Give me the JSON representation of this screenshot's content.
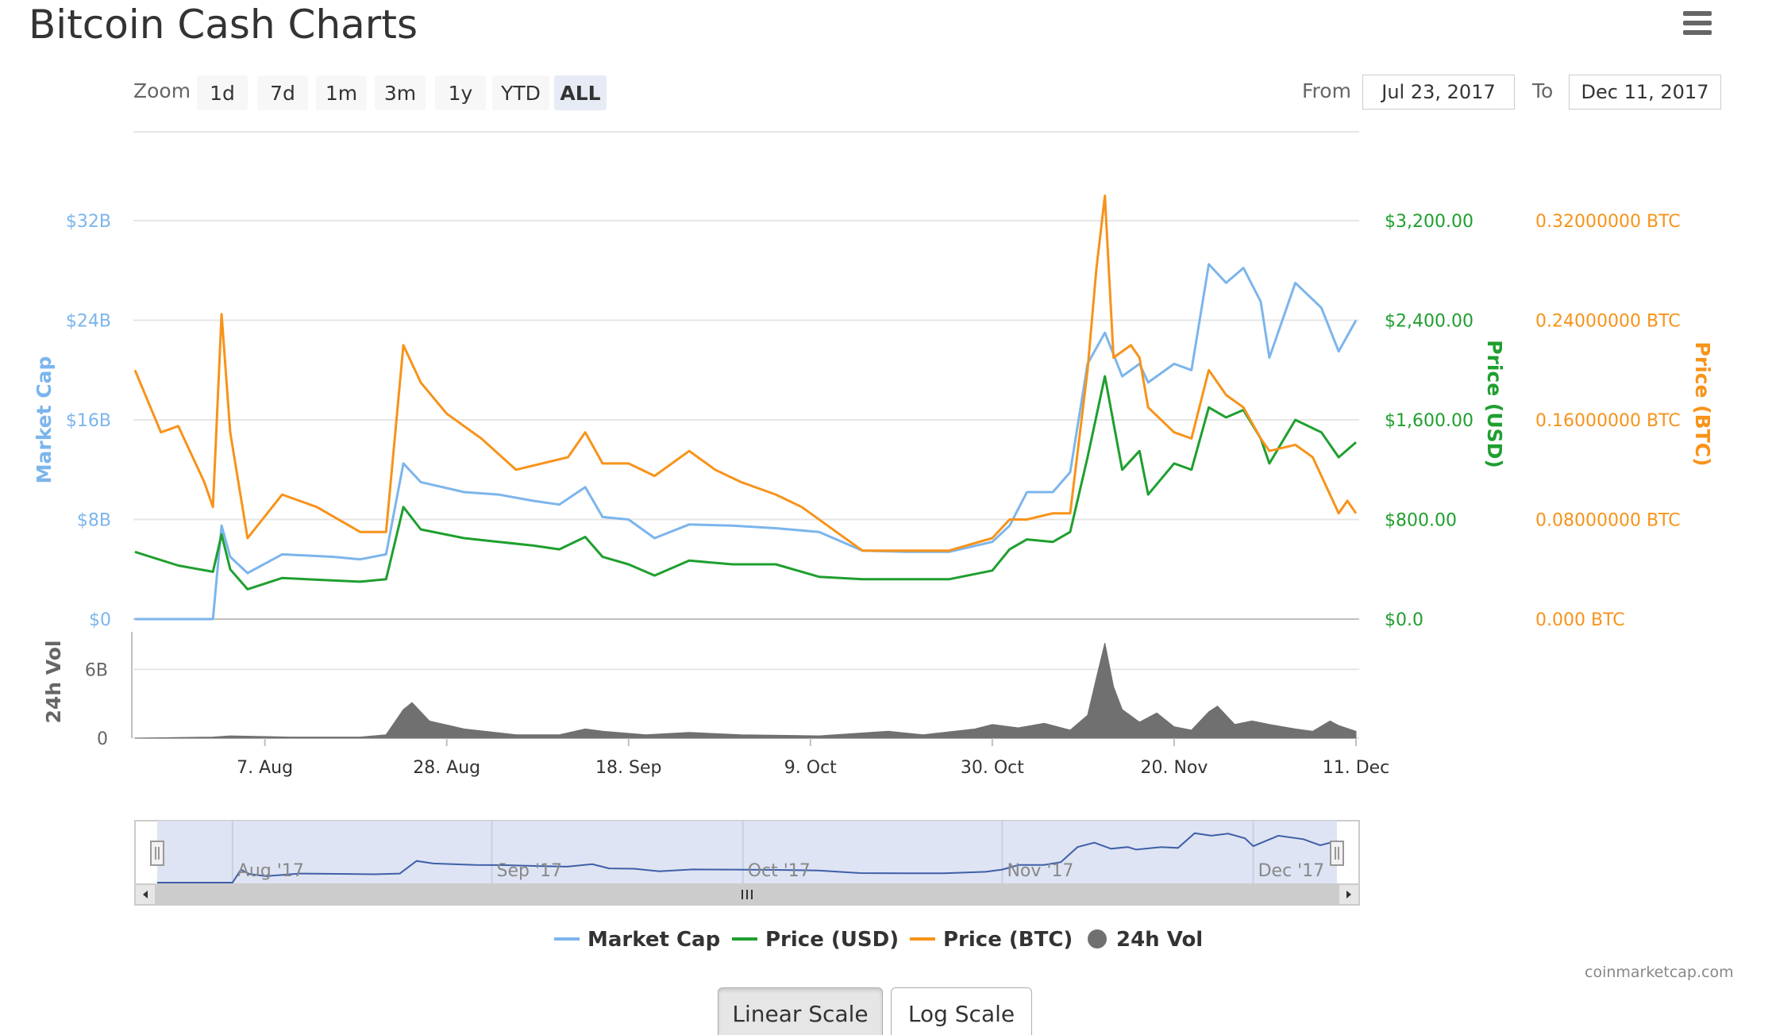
{
  "page": {
    "title": "Bitcoin Cash Charts",
    "menu_icon": "hamburger-menu-icon"
  },
  "zoom": {
    "label": "Zoom",
    "buttons": [
      "1d",
      "7d",
      "1m",
      "3m",
      "1y",
      "YTD",
      "ALL"
    ],
    "active": "ALL"
  },
  "range": {
    "from_label": "From",
    "from_value": "Jul 23, 2017",
    "to_label": "To",
    "to_value": "Dec 11, 2017"
  },
  "colors": {
    "market_cap": "#7cb5ec",
    "price_usd": "#1f9f2f",
    "price_btc": "#f7931a",
    "volume": "#707070",
    "navigator_line": "#3f5fa8",
    "navigator_mask": "#dae1f2"
  },
  "chart_data": {
    "type": "line",
    "x_range": [
      "2017-07-23",
      "2017-12-11"
    ],
    "x_ticks": [
      {
        "date": "2017-08-07",
        "label": "7. Aug"
      },
      {
        "date": "2017-08-28",
        "label": "28. Aug"
      },
      {
        "date": "2017-09-18",
        "label": "18. Sep"
      },
      {
        "date": "2017-10-09",
        "label": "9. Oct"
      },
      {
        "date": "2017-10-30",
        "label": "30. Oct"
      },
      {
        "date": "2017-11-20",
        "label": "20. Nov"
      },
      {
        "date": "2017-12-11",
        "label": "11. Dec"
      }
    ],
    "axes": {
      "market_cap": {
        "title": "Market Cap",
        "ylim": [
          0,
          32
        ],
        "ticks": [
          {
            "value": 0,
            "label": "$0"
          },
          {
            "value": 8,
            "label": "$8B"
          },
          {
            "value": 16,
            "label": "$16B"
          },
          {
            "value": 24,
            "label": "$24B"
          },
          {
            "value": 32,
            "label": "$32B"
          }
        ]
      },
      "price_usd": {
        "title": "Price (USD)",
        "ylim": [
          0,
          3200
        ],
        "ticks": [
          {
            "value": 0,
            "label": "$0.0"
          },
          {
            "value": 800,
            "label": "$800.00"
          },
          {
            "value": 1600,
            "label": "$1,600.00"
          },
          {
            "value": 2400,
            "label": "$2,400.00"
          },
          {
            "value": 3200,
            "label": "$3,200.00"
          }
        ]
      },
      "price_btc": {
        "title": "Price (BTC)",
        "ylim": [
          0,
          0.32
        ],
        "ticks": [
          {
            "value": 0,
            "label": "0.000 BTC"
          },
          {
            "value": 0.08,
            "label": "0.08000000 BTC"
          },
          {
            "value": 0.16,
            "label": "0.16000000 BTC"
          },
          {
            "value": 0.24,
            "label": "0.24000000 BTC"
          },
          {
            "value": 0.32,
            "label": "0.32000000 BTC"
          }
        ]
      },
      "volume": {
        "title": "24h Vol",
        "ylim": [
          0,
          9
        ],
        "ticks": [
          {
            "value": 0,
            "label": "0"
          },
          {
            "value": 6,
            "label": "6B"
          }
        ]
      }
    },
    "series": [
      {
        "name": "Market Cap",
        "key": "market_cap",
        "points": [
          [
            "2017-07-23",
            0
          ],
          [
            "2017-08-01",
            0
          ],
          [
            "2017-08-02",
            7.5
          ],
          [
            "2017-08-03",
            5.0
          ],
          [
            "2017-08-05",
            3.7
          ],
          [
            "2017-08-09",
            5.2
          ],
          [
            "2017-08-15",
            5.0
          ],
          [
            "2017-08-18",
            4.8
          ],
          [
            "2017-08-21",
            5.2
          ],
          [
            "2017-08-23",
            12.5
          ],
          [
            "2017-08-25",
            11.0
          ],
          [
            "2017-08-30",
            10.2
          ],
          [
            "2017-09-03",
            10.0
          ],
          [
            "2017-09-07",
            9.5
          ],
          [
            "2017-09-10",
            9.2
          ],
          [
            "2017-09-13",
            10.6
          ],
          [
            "2017-09-15",
            8.2
          ],
          [
            "2017-09-18",
            8.0
          ],
          [
            "2017-09-21",
            6.5
          ],
          [
            "2017-09-25",
            7.6
          ],
          [
            "2017-09-30",
            7.5
          ],
          [
            "2017-10-05",
            7.3
          ],
          [
            "2017-10-10",
            7.0
          ],
          [
            "2017-10-15",
            5.5
          ],
          [
            "2017-10-20",
            5.4
          ],
          [
            "2017-10-25",
            5.4
          ],
          [
            "2017-10-30",
            6.2
          ],
          [
            "2017-11-01",
            7.5
          ],
          [
            "2017-11-03",
            10.2
          ],
          [
            "2017-11-06",
            10.2
          ],
          [
            "2017-11-08",
            11.8
          ],
          [
            "2017-11-10",
            20.5
          ],
          [
            "2017-11-12",
            23.0
          ],
          [
            "2017-11-14",
            19.5
          ],
          [
            "2017-11-16",
            20.5
          ],
          [
            "2017-11-17",
            19.0
          ],
          [
            "2017-11-20",
            20.5
          ],
          [
            "2017-11-22",
            20.0
          ],
          [
            "2017-11-24",
            28.5
          ],
          [
            "2017-11-26",
            27.0
          ],
          [
            "2017-11-28",
            28.2
          ],
          [
            "2017-11-30",
            25.5
          ],
          [
            "2017-12-01",
            21.0
          ],
          [
            "2017-12-04",
            27.0
          ],
          [
            "2017-12-07",
            25.0
          ],
          [
            "2017-12-09",
            21.5
          ],
          [
            "2017-12-11",
            24.0
          ]
        ]
      },
      {
        "name": "Price (USD)",
        "key": "price_usd",
        "points": [
          [
            "2017-07-23",
            540
          ],
          [
            "2017-07-28",
            430
          ],
          [
            "2017-08-01",
            380
          ],
          [
            "2017-08-02",
            680
          ],
          [
            "2017-08-03",
            400
          ],
          [
            "2017-08-05",
            240
          ],
          [
            "2017-08-09",
            330
          ],
          [
            "2017-08-15",
            310
          ],
          [
            "2017-08-18",
            300
          ],
          [
            "2017-08-21",
            320
          ],
          [
            "2017-08-23",
            900
          ],
          [
            "2017-08-25",
            720
          ],
          [
            "2017-08-30",
            650
          ],
          [
            "2017-09-03",
            620
          ],
          [
            "2017-09-07",
            590
          ],
          [
            "2017-09-10",
            560
          ],
          [
            "2017-09-13",
            660
          ],
          [
            "2017-09-15",
            500
          ],
          [
            "2017-09-18",
            440
          ],
          [
            "2017-09-21",
            350
          ],
          [
            "2017-09-25",
            470
          ],
          [
            "2017-09-30",
            440
          ],
          [
            "2017-10-05",
            440
          ],
          [
            "2017-10-10",
            340
          ],
          [
            "2017-10-15",
            320
          ],
          [
            "2017-10-20",
            320
          ],
          [
            "2017-10-25",
            320
          ],
          [
            "2017-10-30",
            390
          ],
          [
            "2017-11-01",
            560
          ],
          [
            "2017-11-03",
            640
          ],
          [
            "2017-11-06",
            620
          ],
          [
            "2017-11-08",
            700
          ],
          [
            "2017-11-10",
            1300
          ],
          [
            "2017-11-12",
            1950
          ],
          [
            "2017-11-14",
            1200
          ],
          [
            "2017-11-16",
            1350
          ],
          [
            "2017-11-17",
            1000
          ],
          [
            "2017-11-20",
            1250
          ],
          [
            "2017-11-22",
            1200
          ],
          [
            "2017-11-24",
            1700
          ],
          [
            "2017-11-26",
            1620
          ],
          [
            "2017-11-28",
            1680
          ],
          [
            "2017-11-30",
            1450
          ],
          [
            "2017-12-01",
            1250
          ],
          [
            "2017-12-04",
            1600
          ],
          [
            "2017-12-07",
            1500
          ],
          [
            "2017-12-09",
            1300
          ],
          [
            "2017-12-11",
            1420
          ]
        ]
      },
      {
        "name": "Price (BTC)",
        "key": "price_btc",
        "points": [
          [
            "2017-07-23",
            0.2
          ],
          [
            "2017-07-26",
            0.15
          ],
          [
            "2017-07-28",
            0.155
          ],
          [
            "2017-07-31",
            0.11
          ],
          [
            "2017-08-01",
            0.09
          ],
          [
            "2017-08-02",
            0.245
          ],
          [
            "2017-08-03",
            0.15
          ],
          [
            "2017-08-05",
            0.065
          ],
          [
            "2017-08-09",
            0.1
          ],
          [
            "2017-08-13",
            0.09
          ],
          [
            "2017-08-18",
            0.07
          ],
          [
            "2017-08-21",
            0.07
          ],
          [
            "2017-08-23",
            0.22
          ],
          [
            "2017-08-25",
            0.19
          ],
          [
            "2017-08-28",
            0.165
          ],
          [
            "2017-09-01",
            0.145
          ],
          [
            "2017-09-05",
            0.12
          ],
          [
            "2017-09-08",
            0.125
          ],
          [
            "2017-09-11",
            0.13
          ],
          [
            "2017-09-13",
            0.15
          ],
          [
            "2017-09-15",
            0.125
          ],
          [
            "2017-09-18",
            0.125
          ],
          [
            "2017-09-21",
            0.115
          ],
          [
            "2017-09-25",
            0.135
          ],
          [
            "2017-09-28",
            0.12
          ],
          [
            "2017-10-01",
            0.11
          ],
          [
            "2017-10-05",
            0.1
          ],
          [
            "2017-10-08",
            0.09
          ],
          [
            "2017-10-12",
            0.07
          ],
          [
            "2017-10-15",
            0.055
          ],
          [
            "2017-10-20",
            0.055
          ],
          [
            "2017-10-25",
            0.055
          ],
          [
            "2017-10-30",
            0.065
          ],
          [
            "2017-11-01",
            0.08
          ],
          [
            "2017-11-03",
            0.08
          ],
          [
            "2017-11-06",
            0.085
          ],
          [
            "2017-11-08",
            0.085
          ],
          [
            "2017-11-10",
            0.2
          ],
          [
            "2017-11-11",
            0.28
          ],
          [
            "2017-11-12",
            0.34
          ],
          [
            "2017-11-13",
            0.21
          ],
          [
            "2017-11-15",
            0.22
          ],
          [
            "2017-11-16",
            0.21
          ],
          [
            "2017-11-17",
            0.17
          ],
          [
            "2017-11-20",
            0.15
          ],
          [
            "2017-11-22",
            0.145
          ],
          [
            "2017-11-24",
            0.2
          ],
          [
            "2017-11-26",
            0.18
          ],
          [
            "2017-11-28",
            0.17
          ],
          [
            "2017-11-30",
            0.145
          ],
          [
            "2017-12-01",
            0.135
          ],
          [
            "2017-12-04",
            0.14
          ],
          [
            "2017-12-06",
            0.13
          ],
          [
            "2017-12-08",
            0.1
          ],
          [
            "2017-12-09",
            0.085
          ],
          [
            "2017-12-10",
            0.095
          ],
          [
            "2017-12-11",
            0.085
          ]
        ]
      },
      {
        "name": "24h Vol",
        "key": "volume",
        "points": [
          [
            "2017-07-23",
            0
          ],
          [
            "2017-08-01",
            0.1
          ],
          [
            "2017-08-03",
            0.2
          ],
          [
            "2017-08-10",
            0.1
          ],
          [
            "2017-08-18",
            0.1
          ],
          [
            "2017-08-21",
            0.3
          ],
          [
            "2017-08-23",
            2.5
          ],
          [
            "2017-08-24",
            3.1
          ],
          [
            "2017-08-26",
            1.5
          ],
          [
            "2017-08-30",
            0.8
          ],
          [
            "2017-09-05",
            0.3
          ],
          [
            "2017-09-10",
            0.3
          ],
          [
            "2017-09-13",
            0.8
          ],
          [
            "2017-09-15",
            0.6
          ],
          [
            "2017-09-20",
            0.3
          ],
          [
            "2017-09-25",
            0.5
          ],
          [
            "2017-10-01",
            0.3
          ],
          [
            "2017-10-10",
            0.2
          ],
          [
            "2017-10-18",
            0.6
          ],
          [
            "2017-10-22",
            0.3
          ],
          [
            "2017-10-28",
            0.8
          ],
          [
            "2017-10-30",
            1.2
          ],
          [
            "2017-11-02",
            0.9
          ],
          [
            "2017-11-05",
            1.3
          ],
          [
            "2017-11-08",
            0.7
          ],
          [
            "2017-11-10",
            2.0
          ],
          [
            "2017-11-11",
            5.2
          ],
          [
            "2017-11-12",
            8.3
          ],
          [
            "2017-11-13",
            4.5
          ],
          [
            "2017-11-14",
            2.5
          ],
          [
            "2017-11-16",
            1.4
          ],
          [
            "2017-11-18",
            2.2
          ],
          [
            "2017-11-20",
            1.0
          ],
          [
            "2017-11-22",
            0.7
          ],
          [
            "2017-11-24",
            2.3
          ],
          [
            "2017-11-25",
            2.8
          ],
          [
            "2017-11-27",
            1.2
          ],
          [
            "2017-11-29",
            1.5
          ],
          [
            "2017-12-01",
            1.2
          ],
          [
            "2017-12-04",
            0.8
          ],
          [
            "2017-12-06",
            0.6
          ],
          [
            "2017-12-08",
            1.5
          ],
          [
            "2017-12-09",
            1.1
          ],
          [
            "2017-12-11",
            0.6
          ]
        ]
      }
    ],
    "navigator": {
      "labels": [
        "Aug '17",
        "Sep '17",
        "Oct '17",
        "Nov '17",
        "Dec '17"
      ],
      "label_dates": [
        "2017-08-01",
        "2017-09-01",
        "2017-10-01",
        "2017-11-01",
        "2017-12-01"
      ]
    },
    "legend": {
      "position": "bottom-center",
      "items": [
        {
          "name": "Market Cap",
          "key": "market_cap",
          "symbol": "line"
        },
        {
          "name": "Price (USD)",
          "key": "price_usd",
          "symbol": "line"
        },
        {
          "name": "Price (BTC)",
          "key": "price_btc",
          "symbol": "line"
        },
        {
          "name": "24h Vol",
          "key": "volume",
          "symbol": "circle"
        }
      ]
    },
    "grid": true
  },
  "credit": "coinmarketcap.com",
  "scale_buttons": {
    "linear": "Linear Scale",
    "log": "Log Scale",
    "active": "linear"
  }
}
